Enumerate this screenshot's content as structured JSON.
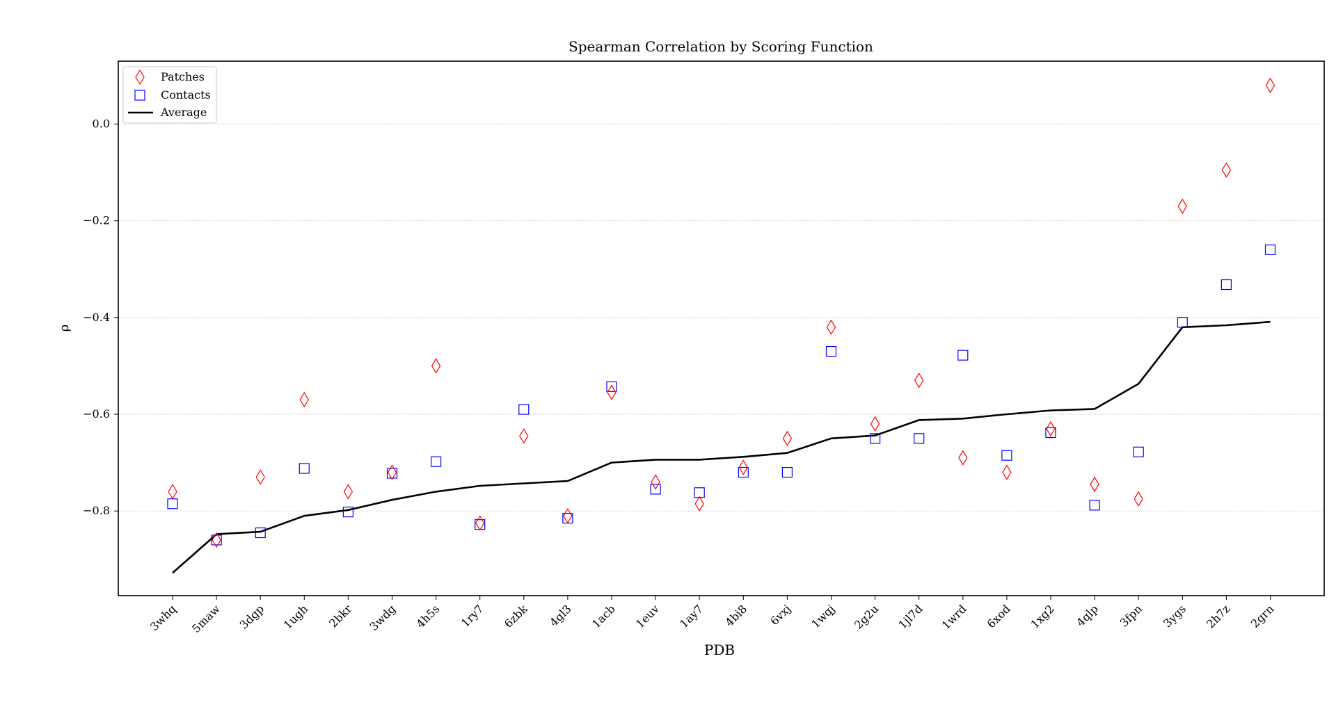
{
  "chart_data": {
    "type": "scatter",
    "title": "Spearman Correlation by Scoring Function",
    "xlabel": "PDB",
    "ylabel": "ρ",
    "categories": [
      "3whq",
      "5maw",
      "3dgp",
      "1ugh",
      "2bkr",
      "3wdg",
      "4h5s",
      "1ry7",
      "6zbk",
      "4gl3",
      "1acb",
      "1euv",
      "1ay7",
      "4bi8",
      "6vxj",
      "1wqj",
      "2g2u",
      "1jl7d",
      "1wrd",
      "6xod",
      "1xg2",
      "4qlp",
      "3fpn",
      "3ygs",
      "2h7z",
      "2grn"
    ],
    "series": [
      {
        "name": "Patches",
        "marker": "diamond",
        "color": "#ff0000",
        "values": [
          -0.76,
          -0.86,
          -0.73,
          -0.57,
          -0.76,
          -0.72,
          -0.5,
          -0.825,
          -0.645,
          -0.81,
          -0.555,
          -0.74,
          -0.785,
          -0.71,
          -0.65,
          -0.42,
          -0.62,
          -0.53,
          -0.69,
          -0.72,
          -0.63,
          -0.745,
          -0.775,
          -0.17,
          -0.095,
          0.08
        ]
      },
      {
        "name": "Contacts",
        "marker": "square",
        "color": "#0000ff",
        "values": [
          -0.785,
          -0.86,
          -0.845,
          -0.712,
          -0.802,
          -0.722,
          -0.698,
          -0.828,
          -0.59,
          -0.815,
          -0.543,
          -0.755,
          -0.762,
          -0.72,
          -0.72,
          -0.47,
          -0.65,
          -0.65,
          -0.478,
          -0.685,
          -0.638,
          -0.788,
          -0.678,
          -0.41,
          -0.332,
          -0.26
        ]
      },
      {
        "name": "Average",
        "marker": "line",
        "color": "#000000",
        "values": [
          -0.928,
          -0.848,
          -0.843,
          -0.81,
          -0.798,
          -0.777,
          -0.76,
          -0.748,
          -0.743,
          -0.738,
          -0.7,
          -0.694,
          -0.694,
          -0.688,
          -0.68,
          -0.65,
          -0.644,
          -0.612,
          -0.609,
          -0.6,
          -0.592,
          -0.589,
          -0.537,
          -0.42,
          -0.416,
          -0.409
        ]
      }
    ],
    "yticks": [
      0.0,
      -0.2,
      -0.4,
      -0.6,
      -0.8
    ],
    "ytick_labels": [
      "0.0",
      "−0.2",
      "−0.4",
      "−0.6",
      "−0.8"
    ],
    "ylim": [
      -0.975,
      0.13
    ],
    "grid": "horizontal dotted",
    "legend": "top-left"
  }
}
